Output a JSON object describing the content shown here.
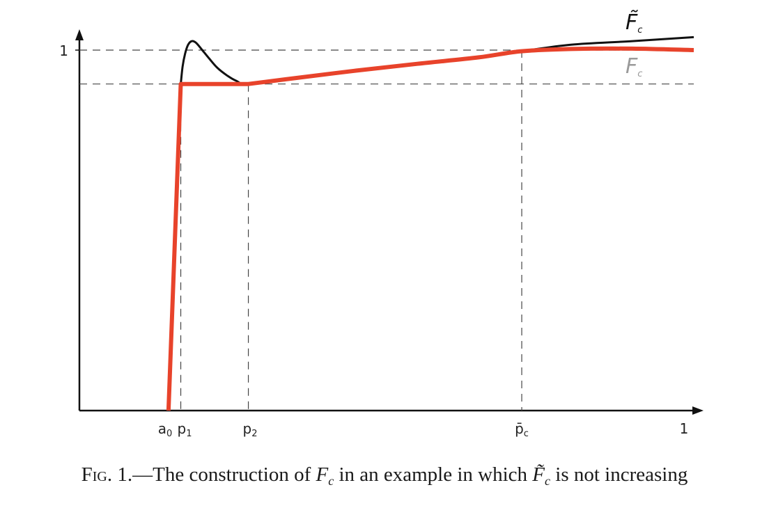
{
  "chart_data": {
    "type": "line",
    "title": "",
    "x_tick_labels": {
      "a0": {
        "base": "a",
        "sub": "0"
      },
      "p1": {
        "base": "p",
        "sub": "1"
      },
      "p2": {
        "base": "p",
        "sub": "2"
      },
      "pbar": {
        "base": "p̄",
        "sub": "c"
      },
      "one": "1"
    },
    "y_tick_labels": {
      "one": "1"
    },
    "x_positions": {
      "a0": 0.145,
      "p1": 0.165,
      "p2": 0.275,
      "pbar": 0.72,
      "one": 1.0
    },
    "y_levels": {
      "one": 1.0,
      "plateau": 0.906
    },
    "xlim": [
      0.0,
      1.0
    ],
    "ylim": [
      0.0,
      1.0
    ],
    "series": [
      {
        "name": "F̃c",
        "label_base": "F̃",
        "label_sub": "c",
        "color": "#111111",
        "width": 3,
        "x": [
          0.165,
          0.168,
          0.172,
          0.177,
          0.183,
          0.19,
          0.2,
          0.212,
          0.225,
          0.24,
          0.255,
          0.275,
          0.35,
          0.45,
          0.55,
          0.65,
          0.72,
          0.8,
          0.9,
          1.0
        ],
        "y": [
          0.906,
          0.955,
          0.99,
          1.015,
          1.025,
          1.02,
          1.0,
          0.975,
          0.95,
          0.93,
          0.915,
          0.906,
          0.922,
          0.943,
          0.962,
          0.98,
          0.997,
          1.015,
          1.025,
          1.036
        ]
      },
      {
        "name": "Fc",
        "label_base": "F",
        "label_sub": "c",
        "color": "#e8432b",
        "label_color": "#9a9a9a",
        "width": 6,
        "x": [
          0.145,
          0.165,
          0.275,
          0.35,
          0.45,
          0.55,
          0.65,
          0.72,
          0.8,
          0.9,
          1.0
        ],
        "y": [
          0.0,
          0.906,
          0.906,
          0.922,
          0.943,
          0.962,
          0.98,
          0.997,
          1.003,
          1.004,
          1.0
        ]
      }
    ],
    "grid": false
  },
  "caption": {
    "fig_label": "Fig. 1.",
    "dash": "—",
    "text_part1": "The construction of ",
    "f_base": "F",
    "f_sub": "c",
    "text_part2": " in an example in which ",
    "ftilde_base": "F̃",
    "ftilde_sub": "c",
    "text_part3": " is not increasing"
  }
}
